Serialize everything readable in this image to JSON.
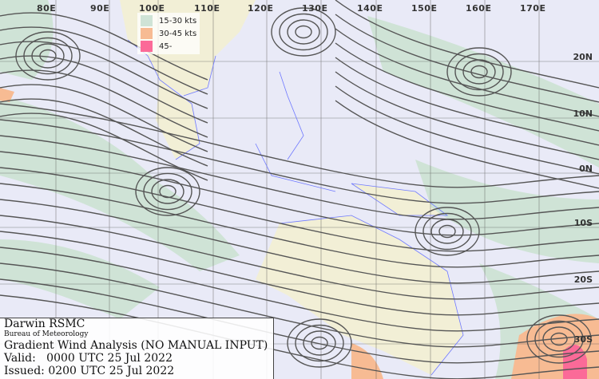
{
  "map": {
    "longitude_labels": [
      "80E",
      "90E",
      "100E",
      "110E",
      "120E",
      "130E",
      "140E",
      "150E",
      "160E",
      "170E"
    ],
    "latitude_labels": [
      "20N",
      "10N",
      "0N",
      "10S",
      "20S",
      "30S"
    ],
    "colors": {
      "background": "#e9eaf7",
      "land": "#f2efd6",
      "coast": "#6f79ff",
      "streamline": "#555555",
      "grid": "#555555"
    }
  },
  "legend": {
    "items": [
      {
        "label": "15-30 kts",
        "color": "#cfe3d6"
      },
      {
        "label": "30-45 kts",
        "color": "#f7bb93"
      },
      {
        "label": "45-",
        "color": "#fb6a98"
      }
    ]
  },
  "title_box": {
    "org": "Darwin RSMC",
    "agency": "Bureau of Meteorology",
    "product": "Gradient Wind Analysis (NO MANUAL INPUT)",
    "valid": "Valid:   0000 UTC 25 Jul 2022",
    "issued": "Issued: 0200 UTC 25 Jul 2022"
  }
}
